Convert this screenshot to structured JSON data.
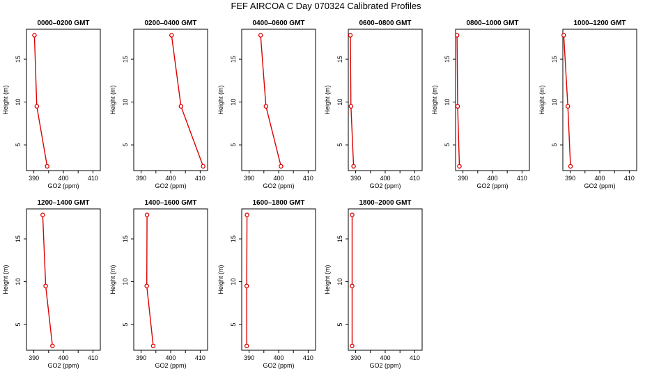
{
  "figure": {
    "title": "FEF AIRCOA C  Day 070324  Calibrated Profiles"
  },
  "style": {
    "line_color": "#dd0000",
    "axis_color": "#000000"
  },
  "chart_data": [
    {
      "type": "line",
      "title": "0000–0200 GMT",
      "xlabel": "GO2 (ppm)",
      "ylabel": "Height (m)",
      "xlim": [
        387.5,
        412.5
      ],
      "ylim": [
        2,
        18.5
      ],
      "xticks": [
        390,
        400,
        410
      ],
      "yticks": [
        5,
        10,
        15
      ],
      "x": [
        390.2,
        391.0,
        394.5
      ],
      "y": [
        17.8,
        9.5,
        2.5
      ]
    },
    {
      "type": "line",
      "title": "0200–0400 GMT",
      "xlabel": "GO2 (ppm)",
      "ylabel": "Height (m)",
      "xlim": [
        387.5,
        412.5
      ],
      "ylim": [
        2,
        18.5
      ],
      "xticks": [
        390,
        400,
        410
      ],
      "yticks": [
        5,
        10,
        15
      ],
      "x": [
        400.3,
        403.5,
        411.0
      ],
      "y": [
        17.8,
        9.5,
        2.5
      ]
    },
    {
      "type": "line",
      "title": "0400–0600 GMT",
      "xlabel": "GO2 (ppm)",
      "ylabel": "Height (m)",
      "xlim": [
        387.5,
        412.5
      ],
      "ylim": [
        2,
        18.5
      ],
      "xticks": [
        390,
        400,
        410
      ],
      "yticks": [
        5,
        10,
        15
      ],
      "x": [
        393.9,
        395.7,
        400.8
      ],
      "y": [
        17.8,
        9.5,
        2.5
      ]
    },
    {
      "type": "line",
      "title": "0600–0800 GMT",
      "xlabel": "GO2 (ppm)",
      "ylabel": "Height (m)",
      "xlim": [
        387.5,
        412.5
      ],
      "ylim": [
        2,
        18.5
      ],
      "xticks": [
        390,
        400,
        410
      ],
      "yticks": [
        5,
        10,
        15
      ],
      "x": [
        388.2,
        388.4,
        389.3
      ],
      "y": [
        17.8,
        9.5,
        2.5
      ]
    },
    {
      "type": "line",
      "title": "0800–1000 GMT",
      "xlabel": "GO2 (ppm)",
      "ylabel": "Height (m)",
      "xlim": [
        387.5,
        412.5
      ],
      "ylim": [
        2,
        18.5
      ],
      "xticks": [
        390,
        400,
        410
      ],
      "yticks": [
        5,
        10,
        15
      ],
      "x": [
        388.0,
        388.2,
        388.8
      ],
      "y": [
        17.8,
        9.5,
        2.5
      ]
    },
    {
      "type": "line",
      "title": "1000–1200 GMT",
      "xlabel": "GO2 (ppm)",
      "ylabel": "Height (m)",
      "xlim": [
        387.5,
        412.5
      ],
      "ylim": [
        2,
        18.5
      ],
      "xticks": [
        390,
        400,
        410
      ],
      "yticks": [
        5,
        10,
        15
      ],
      "x": [
        387.8,
        389.2,
        390.1
      ],
      "y": [
        17.8,
        9.5,
        2.5
      ]
    },
    {
      "type": "line",
      "title": "1200–1400 GMT",
      "xlabel": "GO2 (ppm)",
      "ylabel": "Height (m)",
      "xlim": [
        387.5,
        412.5
      ],
      "ylim": [
        2,
        18.5
      ],
      "xticks": [
        390,
        400,
        410
      ],
      "yticks": [
        5,
        10,
        15
      ],
      "x": [
        393.0,
        394.0,
        396.3
      ],
      "y": [
        17.8,
        9.5,
        2.5
      ]
    },
    {
      "type": "line",
      "title": "1400–1600 GMT",
      "xlabel": "GO2 (ppm)",
      "ylabel": "Height (m)",
      "xlim": [
        387.5,
        412.5
      ],
      "ylim": [
        2,
        18.5
      ],
      "xticks": [
        390,
        400,
        410
      ],
      "yticks": [
        5,
        10,
        15
      ],
      "x": [
        392.0,
        391.9,
        394.1
      ],
      "y": [
        17.8,
        9.5,
        2.5
      ]
    },
    {
      "type": "line",
      "title": "1600–1800 GMT",
      "xlabel": "GO2 (ppm)",
      "ylabel": "Height (m)",
      "xlim": [
        387.5,
        412.5
      ],
      "ylim": [
        2,
        18.5
      ],
      "xticks": [
        390,
        400,
        410
      ],
      "yticks": [
        5,
        10,
        15
      ],
      "x": [
        389.3,
        389.2,
        389.2
      ],
      "y": [
        17.8,
        9.5,
        2.5
      ]
    },
    {
      "type": "line",
      "title": "1800–2000 GMT",
      "xlabel": "GO2 (ppm)",
      "ylabel": "Height (m)",
      "xlim": [
        387.5,
        412.5
      ],
      "ylim": [
        2,
        18.5
      ],
      "xticks": [
        390,
        400,
        410
      ],
      "yticks": [
        5,
        10,
        15
      ],
      "x": [
        388.8,
        388.8,
        388.8
      ],
      "y": [
        17.8,
        9.5,
        2.5
      ]
    }
  ]
}
